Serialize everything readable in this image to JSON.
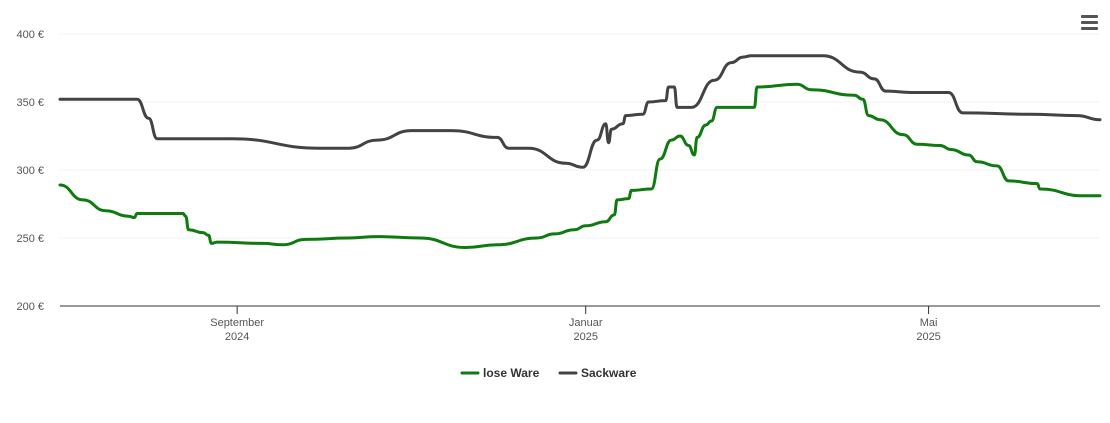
{
  "chart_data": {
    "type": "line",
    "title": "",
    "xlabel": "",
    "ylabel": "",
    "ylim": [
      200,
      400
    ],
    "y_ticks": [
      {
        "value": 200,
        "label": "200 €"
      },
      {
        "value": 250,
        "label": "250 €"
      },
      {
        "value": 300,
        "label": "300 €"
      },
      {
        "value": 350,
        "label": "350 €"
      },
      {
        "value": 400,
        "label": "400 €"
      }
    ],
    "x_range": [
      "2024-07-01",
      "2025-06-15"
    ],
    "x_ticks": [
      {
        "date": "2024-09-01",
        "line1": "September",
        "line2": "2024"
      },
      {
        "date": "2025-01-01",
        "line1": "Januar",
        "line2": "2025"
      },
      {
        "date": "2025-05-01",
        "line1": "Mai",
        "line2": "2025"
      }
    ],
    "grid": true,
    "legend_position": "bottom-center",
    "series": [
      {
        "name": "lose Ware",
        "color": "#0f7a0f",
        "points": [
          [
            "2024-07-01",
            289
          ],
          [
            "2024-07-09",
            278
          ],
          [
            "2024-07-17",
            270
          ],
          [
            "2024-07-25",
            266
          ],
          [
            "2024-07-27",
            265
          ],
          [
            "2024-07-28",
            268
          ],
          [
            "2024-08-13",
            268
          ],
          [
            "2024-08-14",
            266
          ],
          [
            "2024-08-15",
            256
          ],
          [
            "2024-08-20",
            254
          ],
          [
            "2024-08-22",
            252
          ],
          [
            "2024-08-23",
            246
          ],
          [
            "2024-08-25",
            247
          ],
          [
            "2024-09-10",
            246
          ],
          [
            "2024-09-17",
            245
          ],
          [
            "2024-09-25",
            249
          ],
          [
            "2024-10-10",
            250
          ],
          [
            "2024-10-20",
            251
          ],
          [
            "2024-11-04",
            250
          ],
          [
            "2024-11-20",
            243
          ],
          [
            "2024-12-01",
            245
          ],
          [
            "2024-12-15",
            250
          ],
          [
            "2024-12-21",
            253
          ],
          [
            "2024-12-28",
            256
          ],
          [
            "2025-01-01",
            259
          ],
          [
            "2025-01-08",
            262
          ],
          [
            "2025-01-11",
            267
          ],
          [
            "2025-01-12",
            278
          ],
          [
            "2025-01-16",
            279
          ],
          [
            "2025-01-17",
            285
          ],
          [
            "2025-01-24",
            286
          ],
          [
            "2025-01-27",
            308
          ],
          [
            "2025-01-31",
            322
          ],
          [
            "2025-02-03",
            325
          ],
          [
            "2025-02-06",
            318
          ],
          [
            "2025-02-08",
            311
          ],
          [
            "2025-02-09",
            324
          ],
          [
            "2025-02-12",
            333
          ],
          [
            "2025-02-14",
            336
          ],
          [
            "2025-02-16",
            346
          ],
          [
            "2025-03-01",
            346
          ],
          [
            "2025-03-02",
            361
          ],
          [
            "2025-03-16",
            363
          ],
          [
            "2025-03-21",
            359
          ],
          [
            "2025-04-05",
            355
          ],
          [
            "2025-04-08",
            352
          ],
          [
            "2025-04-10",
            340
          ],
          [
            "2025-04-14",
            337
          ],
          [
            "2025-04-22",
            326
          ],
          [
            "2025-04-27",
            319
          ],
          [
            "2025-05-05",
            318
          ],
          [
            "2025-05-09",
            315
          ],
          [
            "2025-05-15",
            311
          ],
          [
            "2025-05-18",
            306
          ],
          [
            "2025-05-25",
            303
          ],
          [
            "2025-05-29",
            292
          ],
          [
            "2025-06-08",
            290
          ],
          [
            "2025-06-09",
            286
          ],
          [
            "2025-06-24",
            281
          ],
          [
            "2025-06-30",
            281
          ]
        ]
      },
      {
        "name": "Sackware",
        "color": "#434343",
        "points": [
          [
            "2024-07-01",
            352
          ],
          [
            "2024-07-28",
            352
          ],
          [
            "2024-08-01",
            338
          ],
          [
            "2024-08-04",
            323
          ],
          [
            "2024-08-30",
            323
          ],
          [
            "2024-09-30",
            316
          ],
          [
            "2024-10-10",
            316
          ],
          [
            "2024-10-20",
            322
          ],
          [
            "2024-11-01",
            329
          ],
          [
            "2024-11-15",
            329
          ],
          [
            "2024-12-01",
            324
          ],
          [
            "2024-12-05",
            316
          ],
          [
            "2024-12-12",
            316
          ],
          [
            "2024-12-25",
            305
          ],
          [
            "2024-12-31",
            302
          ],
          [
            "2025-01-05",
            322
          ],
          [
            "2025-01-08",
            334
          ],
          [
            "2025-01-09",
            320
          ],
          [
            "2025-01-10",
            330
          ],
          [
            "2025-01-14",
            334
          ],
          [
            "2025-01-15",
            340
          ],
          [
            "2025-01-21",
            341
          ],
          [
            "2025-01-23",
            350
          ],
          [
            "2025-01-29",
            351
          ],
          [
            "2025-01-30",
            361
          ],
          [
            "2025-02-01",
            361
          ],
          [
            "2025-02-02",
            346
          ],
          [
            "2025-02-07",
            346
          ],
          [
            "2025-02-15",
            366
          ],
          [
            "2025-02-21",
            379
          ],
          [
            "2025-02-25",
            383
          ],
          [
            "2025-02-28",
            384
          ],
          [
            "2025-03-25",
            384
          ],
          [
            "2025-04-07",
            372
          ],
          [
            "2025-04-12",
            367
          ],
          [
            "2025-04-16",
            358
          ],
          [
            "2025-04-25",
            357
          ],
          [
            "2025-05-03",
            357
          ],
          [
            "2025-05-08",
            357
          ],
          [
            "2025-05-13",
            342
          ],
          [
            "2025-06-05",
            341
          ],
          [
            "2025-06-22",
            340
          ],
          [
            "2025-06-30",
            337
          ]
        ]
      }
    ]
  },
  "toolbar": {
    "menu_icon": "hamburger-menu-icon"
  }
}
